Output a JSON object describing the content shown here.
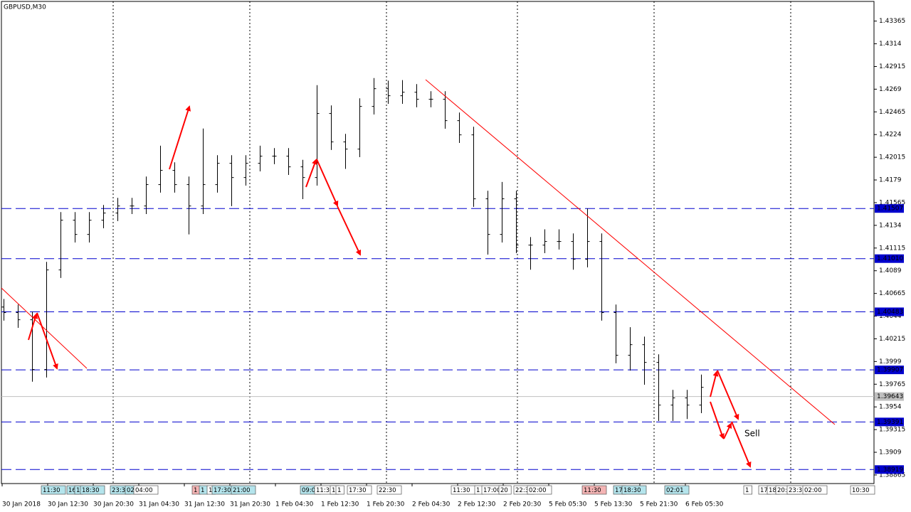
{
  "chart_data": {
    "type": "ohlc",
    "title": "GBPUSD,M30",
    "color": "#000000",
    "ylim": [
      1.3878,
      1.4356
    ],
    "yticks": [
      1.43365,
      1.4314,
      1.42915,
      1.4269,
      1.42465,
      1.4224,
      1.42015,
      1.4179,
      1.41565,
      1.4134,
      1.41115,
      1.4089,
      1.40665,
      1.4044,
      1.40215,
      1.3999,
      1.39765,
      1.3954,
      1.39315,
      1.3909,
      1.38865
    ],
    "x_labels": [
      "30 Jan 2018",
      "30 Jan 12:30",
      "30 Jan 20:30",
      "31 Jan 04:30",
      "31 Jan 12:30",
      "31 Jan 20:30",
      "1 Feb 04:30",
      "1 Feb 12:30",
      "1 Feb 20:30",
      "2 Feb 04:30",
      "2 Feb 12:30",
      "2 Feb 20:30",
      "5 Feb 05:30",
      "5 Feb 13:30",
      "5 Feb 21:30",
      "6 Feb 05:30"
    ],
    "open": [
      1.4053,
      1.40475,
      1.40404,
      1.39911,
      1.40898,
      1.41391,
      1.4125,
      1.41391,
      1.41462,
      1.41532,
      1.41532,
      1.41744,
      1.41885,
      1.41744,
      1.41532,
      1.41744,
      1.41955,
      1.41814,
      1.41955,
      1.42026,
      1.42026,
      1.4192,
      1.41814,
      1.42449,
      1.42167,
      1.42096,
      1.42519,
      1.42695,
      1.42625,
      1.4266,
      1.4259,
      1.4259,
      1.42378,
      1.42237,
      1.41603,
      1.4125,
      1.41603,
      1.41144,
      1.41144,
      1.4118,
      1.4118,
      1.41003,
      1.4118,
      1.40475,
      1.40052,
      1.40157,
      1.39981,
      1.39558,
      1.39629,
      1.39558
    ],
    "high": [
      1.4061,
      1.40555,
      1.40484,
      1.40978,
      1.41471,
      1.41471,
      1.41471,
      1.41542,
      1.41612,
      1.41612,
      1.41824,
      1.4213,
      1.41965,
      1.41824,
      1.423,
      1.42035,
      1.42035,
      1.42035,
      1.4213,
      1.42106,
      1.42106,
      1.4199,
      1.4273,
      1.42529,
      1.42247,
      1.42599,
      1.428,
      1.42775,
      1.4278,
      1.4274,
      1.4267,
      1.4267,
      1.42458,
      1.42317,
      1.41683,
      1.4177,
      1.41683,
      1.41224,
      1.413,
      1.413,
      1.4126,
      1.41507,
      1.4126,
      1.40555,
      1.4033,
      1.40237,
      1.40061,
      1.39709,
      1.39709,
      1.3986
    ],
    "low": [
      1.40395,
      1.40324,
      1.3979,
      1.39831,
      1.40818,
      1.4117,
      1.4117,
      1.41311,
      1.41382,
      1.41452,
      1.41452,
      1.41664,
      1.41664,
      1.4125,
      1.41452,
      1.41664,
      1.4153,
      1.41734,
      1.41875,
      1.41946,
      1.4184,
      1.416,
      1.41734,
      1.42087,
      1.419,
      1.42016,
      1.42439,
      1.42545,
      1.42545,
      1.4251,
      1.4251,
      1.42298,
      1.42157,
      1.41523,
      1.4105,
      1.4117,
      1.41064,
      1.409,
      1.41064,
      1.411,
      1.409,
      1.40923,
      1.40395,
      1.39972,
      1.399,
      1.3976,
      1.394,
      1.394,
      1.3942,
      1.39478
    ],
    "close": [
      1.40475,
      1.40404,
      1.39911,
      1.40898,
      1.41391,
      1.4125,
      1.41391,
      1.41462,
      1.41532,
      1.41532,
      1.41744,
      1.41885,
      1.41744,
      1.41532,
      1.41744,
      1.41955,
      1.41814,
      1.41955,
      1.42026,
      1.42026,
      1.4192,
      1.41814,
      1.42449,
      1.42167,
      1.42096,
      1.42519,
      1.42695,
      1.42625,
      1.4266,
      1.4259,
      1.4259,
      1.42378,
      1.42237,
      1.41603,
      1.4125,
      1.41603,
      1.41144,
      1.41144,
      1.4118,
      1.4118,
      1.41003,
      1.4118,
      1.40475,
      1.40052,
      1.40157,
      1.39981,
      1.39558,
      1.39629,
      1.39558,
      1.39734
    ],
    "levels": [
      {
        "value": 1.41507,
        "label": "1.41507",
        "color": "#0000cd"
      },
      {
        "value": 1.4101,
        "label": "1.41010",
        "color": "#0000cd"
      },
      {
        "value": 1.40483,
        "label": "1.40483",
        "color": "#0000cd"
      },
      {
        "value": 1.39907,
        "label": "1.39907",
        "color": "#0000cd"
      },
      {
        "value": 1.39391,
        "label": "1.39391",
        "color": "#0000cd"
      },
      {
        "value": 1.38919,
        "label": "1.38919",
        "color": "#0000cd"
      }
    ],
    "bid": {
      "value": 1.39643,
      "label": "1.39643",
      "color": "#c0c0c0"
    },
    "annotation": "Sell",
    "event_markers": [
      {
        "text": "11:30",
        "color": "#b4e4ec"
      },
      {
        "text": "16",
        "color": "#b4e4ec"
      },
      {
        "text": "1",
        "color": "#b4e4ec"
      },
      {
        "text": "18:30",
        "color": "#b4e4ec"
      },
      {
        "text": "23:3",
        "color": "#b4e4ec"
      },
      {
        "text": "02:",
        "color": "#b4e4ec"
      },
      {
        "text": "04:00",
        "color": "#ffffff"
      },
      {
        "text": "1",
        "color": "#f4b4b4"
      },
      {
        "text": "1",
        "color": "#b4e4ec"
      },
      {
        "text": "1",
        "color": "#ffffff"
      },
      {
        "text": "17:30",
        "color": "#b4e4ec"
      },
      {
        "text": "21:00",
        "color": "#b4e4ec"
      },
      {
        "text": "09:0",
        "color": "#b4e4ec"
      },
      {
        "text": "11:30",
        "color": "#ffffff"
      },
      {
        "text": "1",
        "color": "#ffffff"
      },
      {
        "text": "1",
        "color": "#ffffff"
      },
      {
        "text": "17:30",
        "color": "#ffffff"
      },
      {
        "text": "22:30",
        "color": "#ffffff"
      },
      {
        "text": "11:30",
        "color": "#ffffff"
      },
      {
        "text": "1",
        "color": "#ffffff"
      },
      {
        "text": "17:00",
        "color": "#ffffff"
      },
      {
        "text": "20",
        "color": "#ffffff"
      },
      {
        "text": "22:3",
        "color": "#ffffff"
      },
      {
        "text": "02:00",
        "color": "#ffffff"
      },
      {
        "text": "11:30",
        "color": "#f4b4b4"
      },
      {
        "text": "17",
        "color": "#b4e4ec"
      },
      {
        "text": "18:30",
        "color": "#b4e4ec"
      },
      {
        "text": "02:01",
        "color": "#b4e4ec"
      },
      {
        "text": "1",
        "color": "#ffffff"
      },
      {
        "text": "17",
        "color": "#ffffff"
      },
      {
        "text": "18",
        "color": "#ffffff"
      },
      {
        "text": "20:00",
        "color": "#ffffff"
      },
      {
        "text": "23:3",
        "color": "#ffffff"
      },
      {
        "text": "02:00",
        "color": "#ffffff"
      },
      {
        "text": "10:30",
        "color": "#ffffff"
      }
    ]
  }
}
